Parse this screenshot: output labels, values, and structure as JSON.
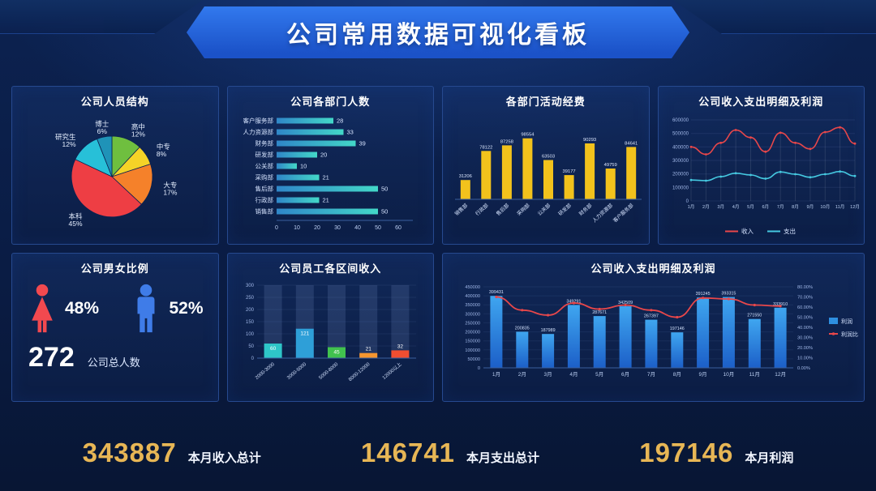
{
  "header": {
    "title": "公司常用数据可视化看板"
  },
  "panels": {
    "personnel": {
      "title": "公司人员结构"
    },
    "departments": {
      "title": "公司各部门人数"
    },
    "funds": {
      "title": "各部门活动经费"
    },
    "income_expense": {
      "title": "公司收入支出明细及利润"
    },
    "gender": {
      "title": "公司男女比例",
      "female_pct": "48%",
      "male_pct": "52%",
      "total": "272",
      "total_label": "公司总人数"
    },
    "salary": {
      "title": "公司员工各区间收入"
    },
    "profit": {
      "title": "公司收入支出明细及利润"
    }
  },
  "chart_data": [
    {
      "id": "education_pie",
      "type": "pie",
      "title": "公司人员结构",
      "labels": [
        "高中",
        "中专",
        "大专",
        "本科",
        "研究生",
        "博士"
      ],
      "values": [
        12,
        8,
        17,
        45,
        12,
        6
      ],
      "unit": "%",
      "colors": [
        "#6fbf3f",
        "#f5d327",
        "#f5812a",
        "#ee3e44",
        "#27c0d8",
        "#1f93b8"
      ]
    },
    {
      "id": "department_headcount",
      "type": "bar",
      "orientation": "horizontal",
      "title": "公司各部门人数",
      "categories": [
        "客户服务部",
        "人力资源部",
        "财务部",
        "研发部",
        "公关部",
        "采购部",
        "售后部",
        "行政部",
        "销售部"
      ],
      "values": [
        28,
        33,
        39,
        20,
        10,
        21,
        50,
        21,
        50
      ],
      "xlim": [
        0,
        60
      ],
      "xticks": [
        0,
        10,
        20,
        30,
        40,
        50,
        60
      ]
    },
    {
      "id": "department_funds",
      "type": "bar",
      "orientation": "vertical",
      "title": "各部门活动经费",
      "categories": [
        "销售部",
        "行政部",
        "售后部",
        "采购部",
        "公关部",
        "研发部",
        "财务部",
        "人力资源部",
        "客户服务部"
      ],
      "values": [
        31206,
        78122,
        87258,
        98554,
        63503,
        39177,
        90293,
        49759,
        84641
      ],
      "ylim": [
        0,
        110000
      ],
      "bar_color": "#f2c21c"
    },
    {
      "id": "income_expense_lines",
      "type": "line",
      "title": "公司收入支出明细及利润",
      "x": [
        "1月",
        "2月",
        "3月",
        "4月",
        "5月",
        "6月",
        "7月",
        "8月",
        "9月",
        "10月",
        "11月",
        "12月"
      ],
      "series": [
        {
          "name": "收入",
          "color": "#e8474a",
          "values": [
            400000,
            345000,
            430000,
            525000,
            470000,
            365000,
            505000,
            430000,
            385000,
            510000,
            545000,
            425000
          ]
        },
        {
          "name": "支出",
          "color": "#45c8e0",
          "values": [
            155000,
            150000,
            180000,
            205000,
            192000,
            165000,
            215000,
            198000,
            175000,
            198000,
            218000,
            185000
          ]
        }
      ],
      "ylim": [
        0,
        600000
      ],
      "yticks": [
        0,
        100000,
        200000,
        300000,
        400000,
        500000,
        600000
      ],
      "legend_position": "bottom"
    },
    {
      "id": "salary_ranges",
      "type": "bar",
      "orientation": "vertical",
      "title": "公司员工各区间收入",
      "categories": [
        "2000-3000",
        "3000-5000",
        "5000-8000",
        "8000-12000",
        "12000以上"
      ],
      "values": [
        60,
        121,
        45,
        21,
        32
      ],
      "colors": [
        "#2ec6c8",
        "#2e9fd8",
        "#41c24e",
        "#f5962f",
        "#f04e31"
      ],
      "ylim": [
        0,
        300
      ],
      "yticks": [
        0,
        50,
        100,
        150,
        200,
        250,
        300
      ]
    },
    {
      "id": "profit_combo",
      "type": "bar+line",
      "title": "公司收入支出明细及利润",
      "categories": [
        "1月",
        "2月",
        "3月",
        "4月",
        "5月",
        "6月",
        "7月",
        "8月",
        "9月",
        "10月",
        "11月",
        "12月"
      ],
      "series": [
        {
          "name": "利润",
          "type": "bar",
          "color": "#2e8fe0",
          "axis": "left",
          "values": [
            399431,
            200835,
            187989,
            349291,
            287671,
            342509,
            267397,
            197146,
            391245,
            393315,
            271550,
            333910
          ]
        },
        {
          "name": "利润比",
          "type": "line",
          "color": "#e8474a",
          "axis": "right",
          "values": [
            70,
            57,
            52,
            64,
            58,
            62,
            57,
            50,
            69,
            68,
            62,
            61
          ]
        }
      ],
      "ylim_left": [
        0,
        450000
      ],
      "yticks_left": [
        0,
        50000,
        100000,
        150000,
        200000,
        250000,
        300000,
        350000,
        400000,
        450000
      ],
      "ylim_right": [
        0,
        80
      ],
      "yticks_right": [
        "0.00%",
        "10.00%",
        "20.00%",
        "30.00%",
        "40.00%",
        "50.00%",
        "60.00%",
        "70.00%",
        "80.00%"
      ],
      "legend_position": "right"
    }
  ],
  "footer": {
    "stats": [
      {
        "value": "343887",
        "label": "本月收入总计"
      },
      {
        "value": "146741",
        "label": "本月支出总计"
      },
      {
        "value": "197146",
        "label": "本月利润"
      }
    ]
  }
}
